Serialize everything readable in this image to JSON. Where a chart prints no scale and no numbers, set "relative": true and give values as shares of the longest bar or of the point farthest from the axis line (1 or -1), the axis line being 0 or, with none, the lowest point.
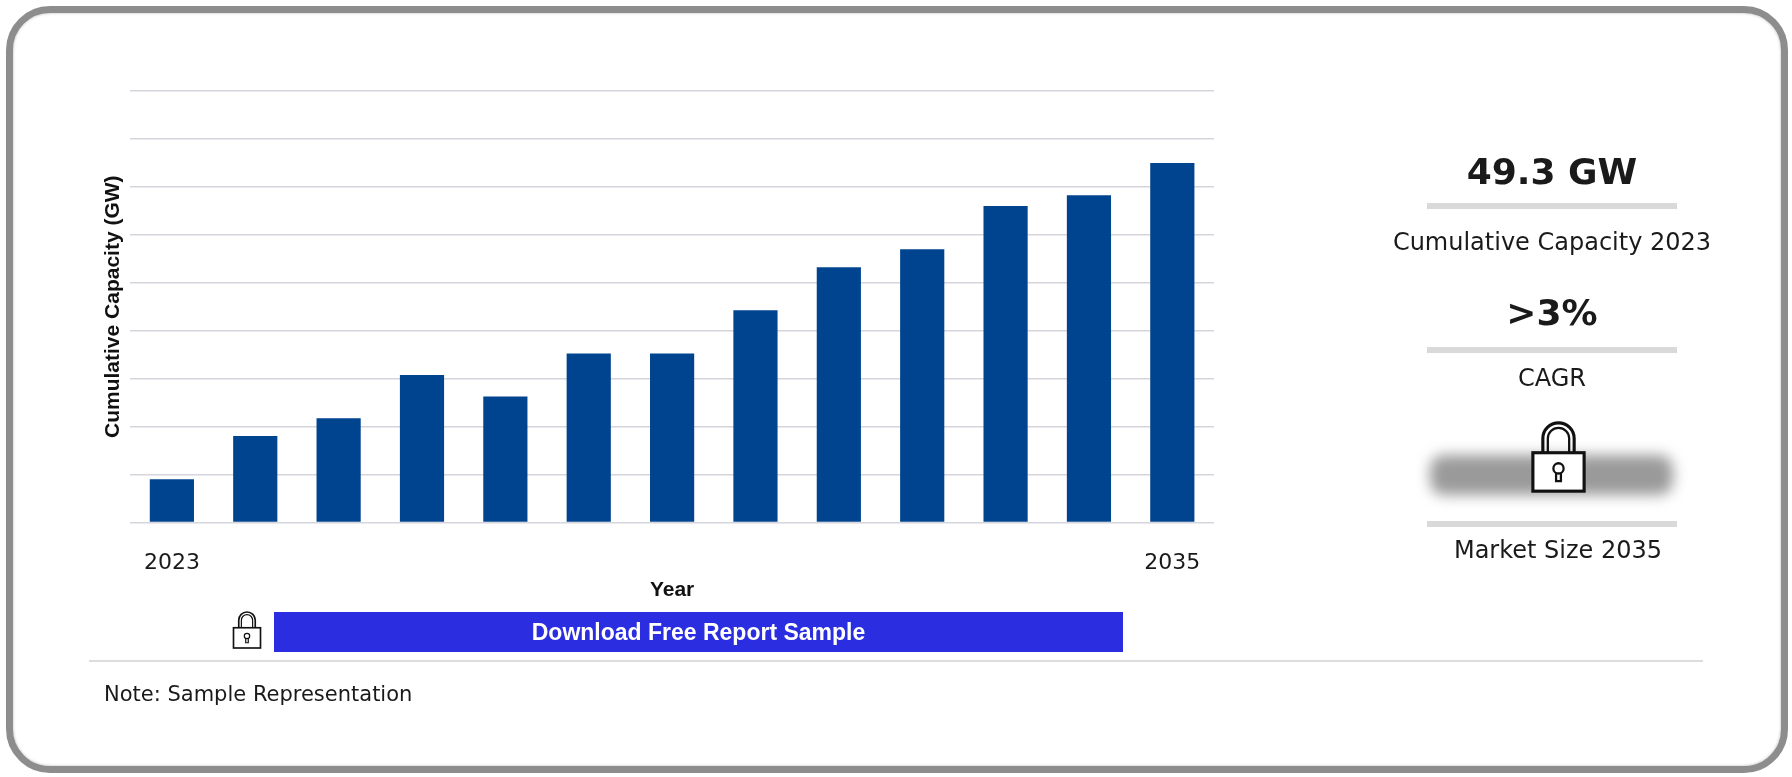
{
  "chart_data": {
    "type": "bar",
    "relative": true,
    "xlabel": "Year",
    "ylabel": "Cumulative Capacity (GW)",
    "categories": [
      "2023",
      null,
      null,
      null,
      null,
      null,
      null,
      null,
      null,
      null,
      null,
      null,
      "2035"
    ],
    "values": [
      0.12,
      0.24,
      0.29,
      0.41,
      0.35,
      0.47,
      0.47,
      0.59,
      0.71,
      0.76,
      0.88,
      0.91,
      1
    ],
    "color": "#00448f",
    "grid": "y",
    "annotations": [
      "49.3 GW",
      "Cumulative Capacity 2023",
      ">3%",
      "CAGR",
      "Market Size 2035",
      "Download Free Report Sample",
      "Note: Sample Representation"
    ]
  }
}
